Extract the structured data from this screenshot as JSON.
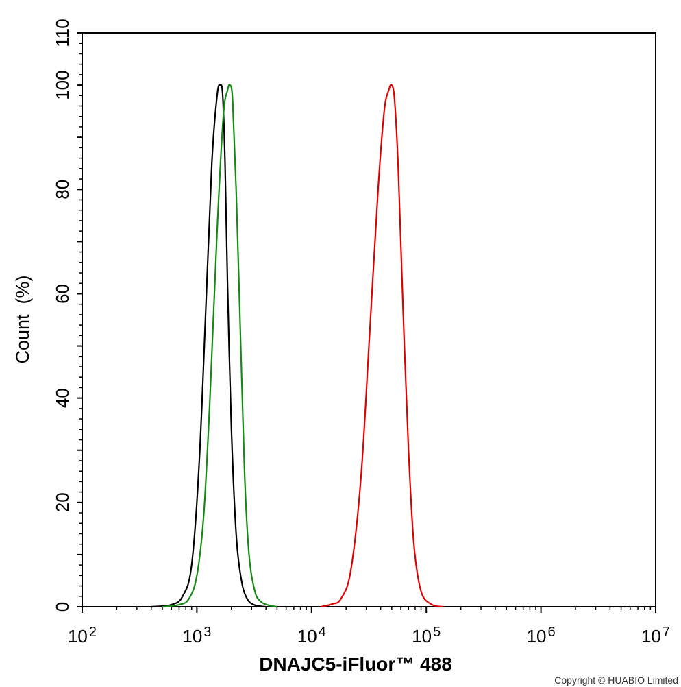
{
  "chart_data": {
    "type": "line",
    "title": "",
    "xlabel": "DNAJC5-iFluor™ 488",
    "ylabel": "Count  (%)",
    "xscale": "log",
    "xlim": [
      100,
      10000000
    ],
    "ylim": [
      0,
      110
    ],
    "x_ticks": [
      {
        "base": "10",
        "exp": "2",
        "value": 100
      },
      {
        "base": "10",
        "exp": "3",
        "value": 1000
      },
      {
        "base": "10",
        "exp": "4",
        "value": 10000
      },
      {
        "base": "10",
        "exp": "5",
        "value": 100000
      },
      {
        "base": "10",
        "exp": "6",
        "value": 1000000
      },
      {
        "base": "10",
        "exp": "7",
        "value": 10000000
      }
    ],
    "y_ticks": [
      0,
      20,
      40,
      60,
      80,
      100,
      110
    ],
    "grid": false,
    "legend": "none",
    "series": [
      {
        "color": "#000000",
        "x": [
          400,
          600,
          750,
          900,
          1050,
          1200,
          1350,
          1500,
          1600,
          1680,
          1760,
          1850,
          2000,
          2200,
          2450,
          2750,
          3200,
          4000
        ],
        "y": [
          0,
          0.4,
          2,
          8,
          28,
          58,
          85,
          98,
          100,
          98,
          85,
          62,
          34,
          14,
          5,
          1.5,
          0.3,
          0
        ]
      },
      {
        "color": "#138a13",
        "x": [
          500,
          700,
          850,
          1000,
          1150,
          1300,
          1500,
          1700,
          1850,
          1950,
          2050,
          2200,
          2400,
          2600,
          2850,
          3200,
          3600,
          4200,
          5000
        ],
        "y": [
          0,
          0.4,
          1.5,
          6,
          18,
          40,
          72,
          94,
          99,
          100,
          97,
          80,
          52,
          26,
          10,
          3,
          1,
          0.3,
          0
        ]
      },
      {
        "color": "#e00000",
        "x": [
          12000,
          15000,
          18000,
          22000,
          27000,
          32000,
          38000,
          43000,
          47000,
          50000,
          53000,
          57000,
          63000,
          70000,
          78000,
          90000,
          110000,
          140000
        ],
        "y": [
          0,
          0.5,
          1.5,
          7,
          25,
          52,
          80,
          95,
          99,
          100,
          97,
          84,
          56,
          30,
          12,
          3,
          0.5,
          0
        ]
      }
    ]
  },
  "footer": {
    "copyright": "Copyright © HUABIO Limited"
  }
}
